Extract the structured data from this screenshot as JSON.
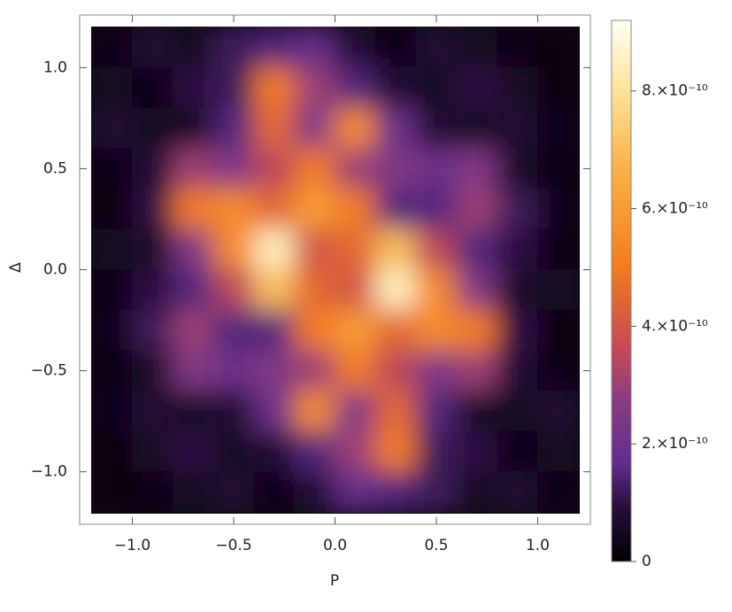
{
  "chart_data": {
    "type": "heatmap",
    "x_label": "P",
    "y_label": "Δ",
    "x": [
      -1.1,
      -0.9,
      -0.7,
      -0.5,
      -0.3,
      -0.1,
      0.1,
      0.3,
      0.5,
      0.7,
      0.9,
      1.1
    ],
    "y": [
      1.1,
      0.9,
      0.7,
      0.5,
      0.3,
      0.1,
      -0.1,
      -0.3,
      -0.5,
      -0.7,
      -0.9,
      -1.1
    ],
    "values": [
      [
        3e-11,
        8e-11,
        5e-11,
        1.2e-10,
        1.5e-10,
        1.8e-10,
        8e-11,
        3e-11,
        8e-11,
        5e-11,
        3e-11,
        2e-11
      ],
      [
        5e-11,
        3e-11,
        1e-10,
        1.2e-10,
        5e-10,
        3e-10,
        1.5e-10,
        8e-11,
        5e-11,
        1e-10,
        6e-11,
        2e-11
      ],
      [
        8e-11,
        5e-11,
        5e-11,
        1.5e-10,
        4.5e-10,
        2.5e-10,
        5.5e-10,
        2e-10,
        8e-11,
        5e-11,
        8e-11,
        4e-11
      ],
      [
        3e-11,
        8e-11,
        3e-10,
        2.5e-10,
        3.5e-10,
        5e-10,
        3e-10,
        2.5e-10,
        2e-10,
        2.5e-10,
        6e-11,
        3e-11
      ],
      [
        2e-11,
        1e-10,
        5e-10,
        5.5e-10,
        4.5e-10,
        6e-10,
        5e-10,
        1.5e-10,
        1.5e-10,
        3e-10,
        1.2e-10,
        4e-11
      ],
      [
        5e-11,
        6e-11,
        2.5e-10,
        5.5e-10,
        8.5e-10,
        4e-10,
        4.5e-10,
        7e-10,
        3.5e-10,
        1.5e-10,
        1e-10,
        3e-11
      ],
      [
        3e-11,
        1e-10,
        1.5e-10,
        3.5e-10,
        7e-10,
        4.5e-10,
        4e-10,
        8.5e-10,
        5.5e-10,
        2.5e-10,
        6e-11,
        5e-11
      ],
      [
        4e-11,
        1.2e-10,
        3e-10,
        1.5e-10,
        1.5e-10,
        5e-10,
        6e-10,
        4.5e-10,
        5.5e-10,
        5e-10,
        1e-10,
        2e-11
      ],
      [
        3e-11,
        6e-11,
        2.5e-10,
        2e-10,
        2.5e-10,
        3e-10,
        5e-10,
        3.5e-10,
        2.5e-10,
        3e-10,
        8e-11,
        3e-11
      ],
      [
        4e-11,
        8e-11,
        5e-11,
        8e-11,
        2e-10,
        5.5e-10,
        2.5e-10,
        4.5e-10,
        1.5e-10,
        5e-11,
        5e-11,
        8e-11
      ],
      [
        2e-11,
        6e-11,
        1e-10,
        5e-11,
        8e-11,
        1.5e-10,
        3e-10,
        5e-10,
        1.2e-10,
        1e-10,
        3e-11,
        5e-11
      ],
      [
        2e-11,
        3e-11,
        5e-11,
        8e-11,
        3e-11,
        8e-11,
        1.8e-10,
        1.5e-10,
        1.2e-10,
        5e-11,
        8e-11,
        3e-11
      ]
    ],
    "xlim": [
      -1.26,
      1.26
    ],
    "ylim": [
      -1.26,
      1.26
    ],
    "xticks": [
      {
        "value": -1,
        "label": "−1.0"
      },
      {
        "value": -0.5,
        "label": "−0.5"
      },
      {
        "value": 0,
        "label": "0.0"
      },
      0.5,
      {
        "value": 1,
        "label": "1.0"
      }
    ],
    "yticks": [
      {
        "value": -1,
        "label": "−1.0"
      },
      {
        "value": -0.5,
        "label": "−0.5"
      },
      {
        "value": 0,
        "label": "0.0"
      },
      0.5,
      {
        "value": 1,
        "label": "1.0"
      }
    ],
    "colorbar": {
      "zlim": [
        0,
        9.2e-10
      ],
      "zticks": [
        0,
        {
          "value": 2e-10,
          "label": "2.×10⁻¹⁰"
        },
        {
          "value": 4e-10,
          "label": "4.×10⁻¹⁰"
        },
        {
          "value": 6e-10,
          "label": "6.×10⁻¹⁰"
        },
        {
          "value": 8e-10,
          "label": "8.×10⁻¹⁰"
        }
      ]
    }
  }
}
